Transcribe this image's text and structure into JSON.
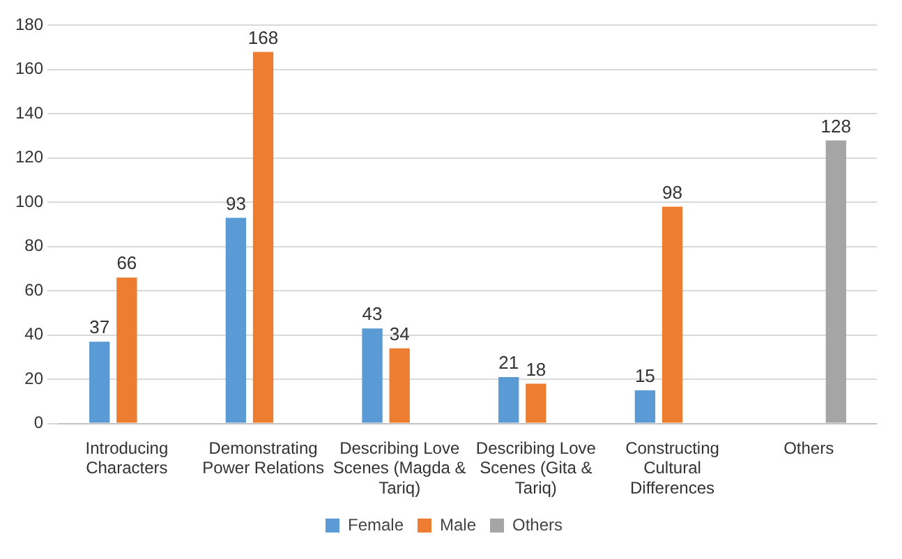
{
  "chart_data": {
    "type": "bar",
    "categories": [
      "Introducing Characters",
      "Demonstrating Power Relations",
      "Describing Love Scenes (Magda & Tariq)",
      "Describing Love Scenes (Gita & Tariq)",
      "Constructing Cultural Differences",
      "Others"
    ],
    "series": [
      {
        "name": "Female",
        "color": "#5b9bd5",
        "values": [
          37,
          93,
          43,
          21,
          15,
          null
        ]
      },
      {
        "name": "Male",
        "color": "#ed7d31",
        "values": [
          66,
          168,
          34,
          18,
          98,
          null
        ]
      },
      {
        "name": "Others",
        "color": "#a5a5a5",
        "values": [
          null,
          null,
          null,
          null,
          null,
          128
        ]
      }
    ],
    "ylim": [
      0,
      180
    ],
    "yticks": [
      0,
      20,
      40,
      60,
      80,
      100,
      120,
      140,
      160,
      180
    ],
    "grid": "y",
    "legend": "bottom",
    "data_labels": true
  }
}
